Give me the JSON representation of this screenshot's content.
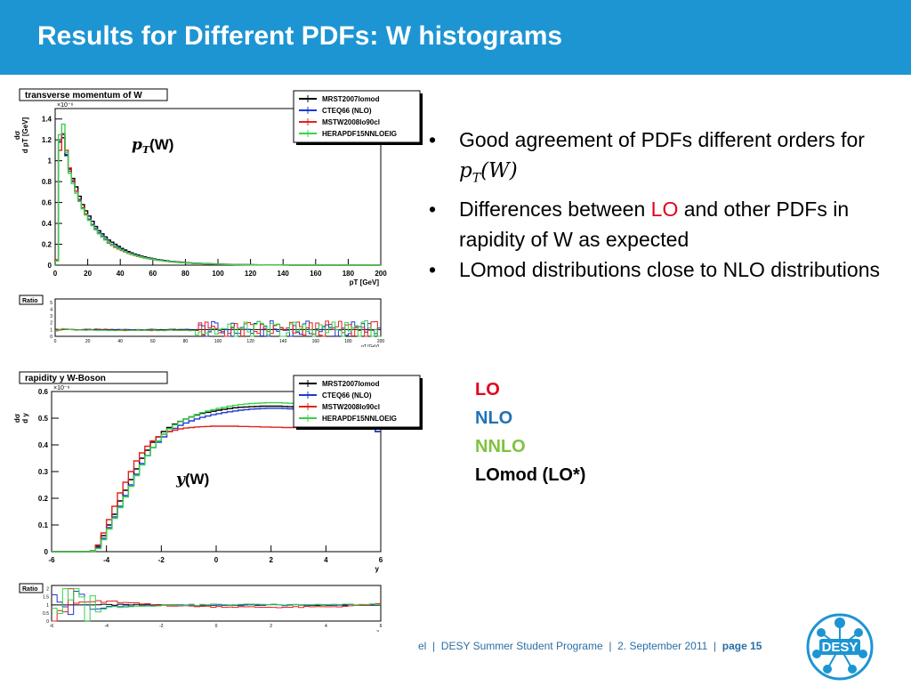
{
  "slide": {
    "title": "Results for Different PDFs: W histograms",
    "bullets": [
      {
        "pre": "Good agreement of PDFs different orders for ",
        "math": "pT(W)",
        "post": ""
      },
      {
        "pre": "Differences between ",
        "highlight": "LO",
        "post": " and other PDFs in rapidity of  W as expected"
      },
      {
        "pre": "LOmod distributions close to NLO distributions"
      }
    ],
    "order_legend": [
      {
        "label": "LO",
        "color": "#e3001b"
      },
      {
        "label": "NLO",
        "color": "#1f73b7"
      },
      {
        "label": "NNLO",
        "color": "#7fc241"
      },
      {
        "label": "LOmod (LO*)",
        "color": "#000000"
      }
    ],
    "footer": {
      "fragment": "el",
      "event": "DESY Summer Student Programe",
      "date": "2. September 2011",
      "page": "page 15"
    },
    "logo_text": "DESY",
    "colors": {
      "header": "#1d95d3",
      "accent_red": "#e3001b",
      "accent_blue": "#1f73b7",
      "accent_green": "#7fc241"
    }
  },
  "chart_data": [
    {
      "type": "histogram",
      "title": "transverse momentum of W",
      "annotation": "pT(W)",
      "annotation_parts": {
        "var": "p",
        "sub": "T",
        "arg": "(W)"
      },
      "ylabel": "dσ/d pT [GeV]",
      "ylabel_parts": {
        "top": "dσ",
        "bottom": "d pT [GeV]"
      },
      "xlabel": "pT [GeV]",
      "exponent": "×10⁻⁶",
      "xlim": [
        0,
        200
      ],
      "ylim": [
        0,
        1.5
      ],
      "x_ticks": [
        0,
        20,
        40,
        60,
        80,
        100,
        120,
        140,
        160,
        180,
        200
      ],
      "y_ticks": [
        0,
        0.2,
        0.4,
        0.6,
        0.8,
        1,
        1.2,
        1.4
      ],
      "y_tick_labels": [
        "0",
        "0.2",
        "0.4",
        "0.6",
        "0.8",
        "1",
        "1.2",
        "1.4"
      ],
      "bin_width": 2,
      "series": [
        {
          "name": "MRST2007lomod",
          "color": "#000000",
          "values": [
            0.05,
            1.18,
            1.22,
            1.05,
            0.92,
            0.83,
            0.75,
            0.66,
            0.58,
            0.52,
            0.47,
            0.42,
            0.37,
            0.33,
            0.3,
            0.27,
            0.24,
            0.22,
            0.2,
            0.18,
            0.16,
            0.145,
            0.13,
            0.118,
            0.106,
            0.096,
            0.087,
            0.079,
            0.072,
            0.065,
            0.059,
            0.054,
            0.049,
            0.045,
            0.041,
            0.037,
            0.034,
            0.031,
            0.029,
            0.026,
            0.024,
            0.022,
            0.02,
            0.018,
            0.017,
            0.015,
            0.014,
            0.013,
            0.012,
            0.011,
            0.01,
            0.009,
            0.008,
            0.008,
            0.007,
            0.006,
            0.006,
            0.005,
            0.005,
            0.004,
            0.004,
            0.004,
            0.003,
            0.003,
            0.003,
            0.003,
            0.002,
            0.002,
            0.002,
            0.002,
            0.002,
            0.002,
            0.001,
            0.001,
            0.001,
            0.001,
            0.001,
            0.001,
            0.001,
            0.001,
            0.001,
            0.001,
            0.001,
            0.001,
            0.001,
            0.001,
            0.001,
            0.001,
            0.001,
            0.001,
            0.001,
            0.001,
            0.001,
            0.001,
            0.001,
            0.001,
            0.001,
            0.001,
            0.001,
            0.001
          ]
        },
        {
          "name": "CTEQ66 (NLO)",
          "color": "#1c39d6",
          "values": [
            0.04,
            1.2,
            1.25,
            1.06,
            0.9,
            0.8,
            0.71,
            0.63,
            0.55,
            0.49,
            0.44,
            0.39,
            0.35,
            0.31,
            0.28,
            0.25,
            0.22,
            0.2,
            0.18,
            0.165,
            0.15,
            0.135,
            0.12,
            0.11,
            0.098,
            0.089,
            0.081,
            0.073,
            0.066,
            0.06,
            0.055,
            0.05,
            0.045,
            0.041,
            0.038,
            0.034,
            0.031,
            0.029,
            0.026,
            0.024,
            0.022,
            0.02,
            0.018,
            0.017,
            0.015,
            0.014,
            0.013,
            0.012,
            0.011,
            0.01,
            0.009,
            0.008,
            0.008,
            0.007,
            0.006,
            0.006,
            0.005,
            0.005,
            0.004,
            0.004,
            0.004,
            0.003,
            0.003,
            0.003,
            0.003,
            0.002,
            0.002,
            0.002,
            0.002,
            0.002,
            0.002,
            0.002,
            0.001,
            0.001,
            0.001,
            0.001,
            0.001,
            0.001,
            0.001,
            0.001,
            0.001,
            0.001,
            0.001,
            0.001,
            0.001,
            0.001,
            0.001,
            0.001,
            0.001,
            0.001,
            0.001,
            0.001,
            0.001,
            0.001,
            0.001,
            0.001,
            0.001,
            0.001,
            0.001,
            0.001
          ]
        },
        {
          "name": "MSTW2008lo90cl",
          "color": "#e0231c",
          "values": [
            0.05,
            1.1,
            1.26,
            1.1,
            0.93,
            0.81,
            0.71,
            0.62,
            0.55,
            0.49,
            0.43,
            0.38,
            0.34,
            0.3,
            0.27,
            0.24,
            0.21,
            0.19,
            0.17,
            0.155,
            0.14,
            0.126,
            0.114,
            0.103,
            0.093,
            0.084,
            0.076,
            0.069,
            0.063,
            0.057,
            0.052,
            0.047,
            0.043,
            0.039,
            0.036,
            0.033,
            0.03,
            0.027,
            0.025,
            0.023,
            0.021,
            0.019,
            0.017,
            0.016,
            0.014,
            0.013,
            0.012,
            0.011,
            0.01,
            0.009,
            0.008,
            0.008,
            0.007,
            0.006,
            0.006,
            0.005,
            0.005,
            0.004,
            0.004,
            0.004,
            0.003,
            0.003,
            0.003,
            0.003,
            0.002,
            0.002,
            0.002,
            0.002,
            0.002,
            0.002,
            0.001,
            0.001,
            0.001,
            0.001,
            0.001,
            0.001,
            0.001,
            0.001,
            0.001,
            0.001,
            0.001,
            0.001,
            0.001,
            0.001,
            0.001,
            0.001,
            0.001,
            0.001,
            0.001,
            0.001,
            0.001,
            0.001,
            0.001,
            0.001,
            0.001,
            0.001,
            0.001,
            0.001,
            0.001,
            0.001
          ]
        },
        {
          "name": "HERAPDF15NNLOEIG",
          "color": "#39d14b",
          "values": [
            0.04,
            1.25,
            1.35,
            1.08,
            0.88,
            0.78,
            0.69,
            0.61,
            0.54,
            0.48,
            0.43,
            0.38,
            0.34,
            0.3,
            0.27,
            0.24,
            0.215,
            0.195,
            0.175,
            0.16,
            0.145,
            0.13,
            0.117,
            0.106,
            0.096,
            0.087,
            0.079,
            0.071,
            0.065,
            0.059,
            0.053,
            0.048,
            0.044,
            0.04,
            0.037,
            0.033,
            0.03,
            0.028,
            0.025,
            0.023,
            0.021,
            0.019,
            0.018,
            0.016,
            0.015,
            0.013,
            0.012,
            0.011,
            0.01,
            0.009,
            0.009,
            0.008,
            0.007,
            0.007,
            0.006,
            0.005,
            0.005,
            0.005,
            0.004,
            0.004,
            0.003,
            0.003,
            0.003,
            0.003,
            0.002,
            0.002,
            0.002,
            0.002,
            0.002,
            0.002,
            0.001,
            0.001,
            0.001,
            0.001,
            0.001,
            0.001,
            0.001,
            0.001,
            0.001,
            0.001,
            0.001,
            0.001,
            0.001,
            0.001,
            0.001,
            0.001,
            0.001,
            0.001,
            0.001,
            0.001,
            0.001,
            0.001,
            0.001,
            0.001,
            0.001,
            0.001,
            0.001,
            0.001,
            0.001,
            0.001
          ]
        }
      ],
      "ratio": {
        "label": "Ratio",
        "xlabel": "pT [GeV]",
        "ylim": [
          0,
          5.5
        ],
        "y_ticks": [
          0,
          1,
          2,
          3,
          4,
          5
        ],
        "x_ticks": [
          0,
          20,
          40,
          60,
          80,
          100,
          120,
          140,
          160,
          180,
          200
        ],
        "note": "ratio ~1 with large fluctuations above 100 GeV"
      }
    },
    {
      "type": "histogram",
      "title": "rapidity y W-Boson",
      "annotation": "y(W)",
      "annotation_parts": {
        "var": "y",
        "arg": "(W)"
      },
      "ylabel": "dσ/d y",
      "ylabel_parts": {
        "top": "dσ",
        "bottom": "d y"
      },
      "xlabel": "y",
      "exponent": "×10⁻⁶",
      "xlim": [
        -6,
        6
      ],
      "ylim": [
        0,
        0.6
      ],
      "x_ticks": [
        -6,
        -4,
        -2,
        0,
        2,
        4,
        6
      ],
      "y_ticks": [
        0,
        0.1,
        0.2,
        0.3,
        0.4,
        0.5,
        0.6
      ],
      "y_tick_labels": [
        "0",
        "0.1",
        "0.2",
        "0.3",
        "0.4",
        "0.5",
        "0.6"
      ],
      "bin_width": 0.2,
      "series": [
        {
          "name": "MRST2007lomod",
          "color": "#000000",
          "values": [
            0,
            0,
            0,
            0,
            0,
            0,
            0,
            0.003,
            0.02,
            0.06,
            0.1,
            0.14,
            0.19,
            0.23,
            0.27,
            0.31,
            0.35,
            0.38,
            0.41,
            0.43,
            0.45,
            0.465,
            0.478,
            0.488,
            0.497,
            0.505,
            0.512,
            0.518,
            0.522,
            0.526,
            0.53,
            0.533,
            0.536,
            0.539,
            0.541,
            0.542,
            0.543,
            0.544,
            0.545,
            0.545,
            0.545,
            0.545,
            0.544,
            0.543,
            0.542,
            0.541,
            0.539,
            0.536,
            0.533,
            0.53,
            0.526,
            0.522,
            0.518,
            0.512,
            0.505,
            0.497,
            0.488,
            0.478,
            0.465,
            0.45
          ]
        },
        {
          "name": "CTEQ66 (NLO)",
          "color": "#1c39d6",
          "values": [
            0,
            0,
            0,
            0,
            0,
            0,
            0,
            0.002,
            0.015,
            0.05,
            0.09,
            0.13,
            0.17,
            0.21,
            0.25,
            0.29,
            0.33,
            0.36,
            0.39,
            0.41,
            0.43,
            0.45,
            0.462,
            0.473,
            0.482,
            0.49,
            0.497,
            0.503,
            0.508,
            0.513,
            0.517,
            0.521,
            0.524,
            0.527,
            0.53,
            0.532,
            0.534,
            0.535,
            0.536,
            0.537,
            0.537,
            0.537,
            0.536,
            0.535,
            0.534,
            0.532,
            0.53,
            0.527,
            0.524,
            0.521,
            0.517,
            0.513,
            0.508,
            0.503,
            0.497,
            0.49,
            0.482,
            0.473,
            0.462,
            0.45
          ]
        },
        {
          "name": "MSTW2008lo90cl",
          "color": "#e0231c",
          "values": [
            0,
            0,
            0,
            0,
            0,
            0,
            0,
            0.003,
            0.025,
            0.07,
            0.12,
            0.17,
            0.22,
            0.26,
            0.3,
            0.34,
            0.37,
            0.395,
            0.415,
            0.43,
            0.44,
            0.45,
            0.455,
            0.46,
            0.463,
            0.465,
            0.467,
            0.468,
            0.469,
            0.47,
            0.47,
            0.47,
            0.47,
            0.47,
            0.469,
            0.469,
            0.468,
            0.468,
            0.467,
            0.467,
            0.466,
            0.466,
            0.465,
            0.465,
            0.465,
            0.465,
            0.465,
            0.465,
            0.465,
            0.466,
            0.466,
            0.467,
            0.467,
            0.468,
            0.468,
            0.469,
            0.469,
            0.47,
            0.47,
            0.47
          ]
        },
        {
          "name": "HERAPDF15NNLOEIG",
          "color": "#39d14b",
          "values": [
            0,
            0,
            0,
            0,
            0,
            0,
            0,
            0.002,
            0.012,
            0.045,
            0.085,
            0.125,
            0.165,
            0.205,
            0.245,
            0.285,
            0.325,
            0.36,
            0.39,
            0.415,
            0.44,
            0.46,
            0.475,
            0.487,
            0.497,
            0.506,
            0.514,
            0.521,
            0.527,
            0.532,
            0.537,
            0.541,
            0.545,
            0.548,
            0.551,
            0.553,
            0.555,
            0.556,
            0.557,
            0.558,
            0.558,
            0.558,
            0.557,
            0.556,
            0.555,
            0.553,
            0.551,
            0.548,
            0.545,
            0.541,
            0.537,
            0.532,
            0.527,
            0.521,
            0.514,
            0.506,
            0.497,
            0.487,
            0.475,
            0.46
          ]
        }
      ],
      "ratio": {
        "label": "Ratio",
        "xlabel": "y",
        "ylim": [
          0,
          2.2
        ],
        "y_ticks": [
          0,
          0.5,
          1,
          1.5,
          2
        ],
        "x_ticks": [
          -6,
          -4,
          -2,
          0,
          2,
          4,
          6
        ],
        "note": "ratio ~1 in the central region, edges fluctuate"
      }
    }
  ]
}
